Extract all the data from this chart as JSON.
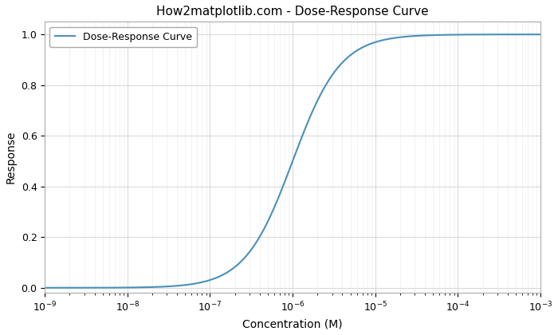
{
  "title": "How2matplotlib.com - Dose-Response Curve",
  "xlabel": "Concentration (M)",
  "ylabel": "Response",
  "legend_label": "Dose-Response Curve",
  "line_color": "#4a90b8",
  "x_min": 1e-09,
  "x_max": 0.001,
  "y_min": -0.02,
  "y_max": 1.05,
  "EC50": 1e-06,
  "hill_coefficient": 1.5,
  "grid_major_color": "#d0d0d0",
  "grid_minor_color": "#e8e8e8",
  "bg_color": "#ffffff",
  "num_points": 1000
}
